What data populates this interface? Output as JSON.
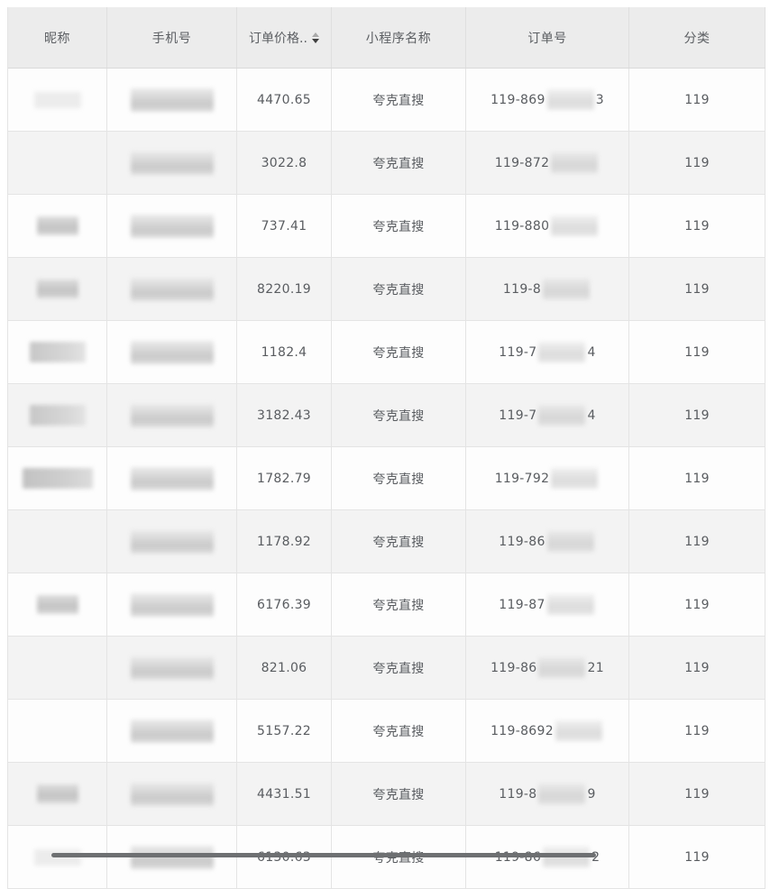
{
  "table": {
    "columns": [
      {
        "label": "昵称",
        "sortable": false
      },
      {
        "label": "手机号",
        "sortable": false
      },
      {
        "label": "订单价格..",
        "sortable": true
      },
      {
        "label": "小程序名称",
        "sortable": false
      },
      {
        "label": "订单号",
        "sortable": false
      },
      {
        "label": "分类",
        "sortable": false
      }
    ],
    "sort": {
      "column": "订单价格..",
      "active_direction": "desc"
    },
    "rows": [
      {
        "nickname_mask": "faint",
        "phone_masked": true,
        "price": "4470.65",
        "program": "夸克直搜",
        "order_prefix": "119-869",
        "order_masked": true,
        "order_suffix": "3",
        "category": "119"
      },
      {
        "nickname_mask": "none",
        "phone_masked": true,
        "price": "3022.8",
        "program": "夸克直搜",
        "order_prefix": "119-872",
        "order_masked": true,
        "order_suffix": "",
        "category": "119"
      },
      {
        "nickname_mask": "small",
        "phone_masked": true,
        "price": "737.41",
        "program": "夸克直搜",
        "order_prefix": "119-880",
        "order_masked": true,
        "order_suffix": "",
        "category": "119"
      },
      {
        "nickname_mask": "small",
        "phone_masked": true,
        "price": "8220.19",
        "program": "夸克直搜",
        "order_prefix": "119-8",
        "order_masked": true,
        "order_suffix": "",
        "category": "119"
      },
      {
        "nickname_mask": "medium",
        "phone_masked": true,
        "price": "1182.4",
        "program": "夸克直搜",
        "order_prefix": "119-7",
        "order_masked": true,
        "order_suffix": "4",
        "category": "119"
      },
      {
        "nickname_mask": "medium",
        "phone_masked": true,
        "price": "3182.43",
        "program": "夸克直搜",
        "order_prefix": "119-7",
        "order_masked": true,
        "order_suffix": "4",
        "category": "119"
      },
      {
        "nickname_mask": "wide",
        "phone_masked": true,
        "price": "1782.79",
        "program": "夸克直搜",
        "order_prefix": "119-792",
        "order_masked": true,
        "order_suffix": "",
        "category": "119"
      },
      {
        "nickname_mask": "none",
        "phone_masked": true,
        "price": "1178.92",
        "program": "夸克直搜",
        "order_prefix": "119-86",
        "order_masked": true,
        "order_suffix": "",
        "category": "119"
      },
      {
        "nickname_mask": "small",
        "phone_masked": true,
        "price": "6176.39",
        "program": "夸克直搜",
        "order_prefix": "119-87",
        "order_masked": true,
        "order_suffix": "",
        "category": "119"
      },
      {
        "nickname_mask": "none",
        "phone_masked": true,
        "price": "821.06",
        "program": "夸克直搜",
        "order_prefix": "119-86",
        "order_masked": true,
        "order_suffix": "21",
        "category": "119"
      },
      {
        "nickname_mask": "none",
        "phone_masked": true,
        "price": "5157.22",
        "program": "夸克直搜",
        "order_prefix": "119-8692",
        "order_masked": true,
        "order_suffix": "",
        "category": "119"
      },
      {
        "nickname_mask": "small",
        "phone_masked": true,
        "price": "4431.51",
        "program": "夸克直搜",
        "order_prefix": "119-8",
        "order_masked": true,
        "order_suffix": "9",
        "category": "119"
      },
      {
        "nickname_mask": "faint",
        "phone_masked": true,
        "price": "6130.63",
        "program": "夸克直搜",
        "order_prefix": "119-86",
        "order_masked": true,
        "order_suffix": "2",
        "category": "119"
      }
    ]
  },
  "colors": {
    "header_bg": "#ececec",
    "row_bg": "#fdfdfd",
    "row_alt_bg": "#f3f3f3",
    "border": "#e4e4e4",
    "text": "#595c60",
    "scrollbar_thumb": "#6e7072"
  },
  "scrollbar": {
    "orientation": "horizontal"
  }
}
